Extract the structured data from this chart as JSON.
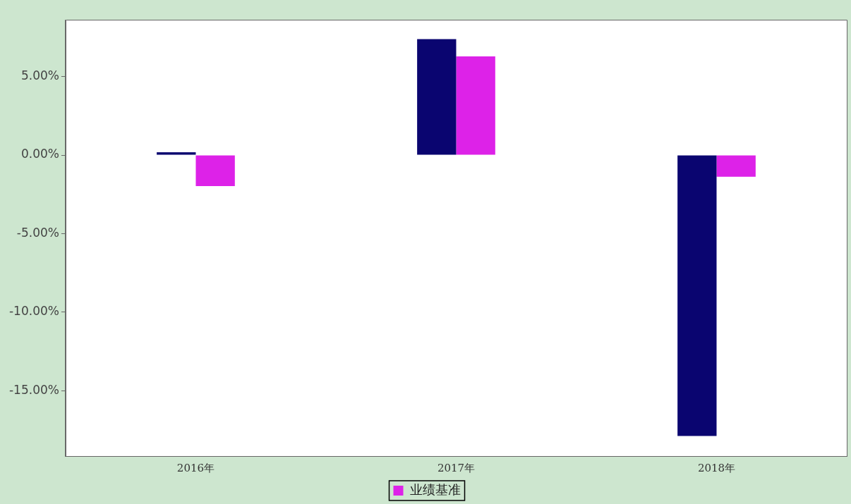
{
  "chart_data": {
    "type": "bar",
    "categories": [
      "2016年",
      "2017年",
      "2018年"
    ],
    "series": [
      {
        "color": "#0a0570",
        "values": [
          0.18,
          7.39,
          -17.89
        ]
      },
      {
        "name": "业绩基准",
        "color": "#dd22e8",
        "values": [
          -1.97,
          6.28,
          -1.38
        ]
      }
    ],
    "ylim": [
      -19.17,
      8.62
    ],
    "yticks": [
      {
        "value": -15,
        "label": "-15.00%"
      },
      {
        "value": -10,
        "label": "-10.00%"
      },
      {
        "value": -5,
        "label": "-5.00%"
      },
      {
        "value": 0,
        "label": "0.00%"
      },
      {
        "value": 5,
        "label": "5.00%"
      }
    ],
    "grid": false,
    "legend": "bottom"
  }
}
